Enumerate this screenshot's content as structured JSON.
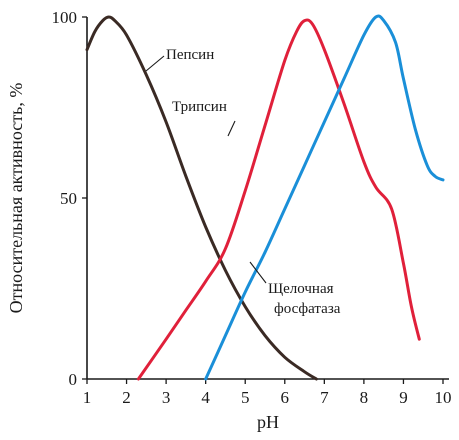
{
  "chart_data": {
    "type": "line",
    "title": "",
    "xlabel": "pH",
    "ylabel": "Относительная активность, %",
    "xlim": [
      1,
      10
    ],
    "ylim": [
      0,
      100
    ],
    "x_ticks": [
      "1",
      "2",
      "3",
      "4",
      "5",
      "6",
      "7",
      "8",
      "9",
      "10"
    ],
    "y_ticks": [
      "0",
      "50",
      "100"
    ],
    "grid": false,
    "series": [
      {
        "name": "Пепсин",
        "color": "#3a2a24",
        "x": [
          1.0,
          1.2,
          1.4,
          1.55,
          1.7,
          2.0,
          2.5,
          3.0,
          3.5,
          4.0,
          4.5,
          5.0,
          5.5,
          6.0,
          6.5,
          6.8
        ],
        "y": [
          91,
          96,
          99,
          100,
          99,
          95,
          84,
          71,
          56,
          42,
          30,
          20,
          12,
          6,
          2,
          0
        ]
      },
      {
        "name": "Трипсин",
        "color": "#e0203a",
        "x": [
          2.3,
          3.0,
          3.5,
          4.0,
          4.5,
          5.0,
          5.5,
          6.0,
          6.3,
          6.5,
          6.7,
          7.0,
          7.5,
          8.0,
          8.3,
          8.7,
          9.0,
          9.2,
          9.4
        ],
        "y": [
          0,
          11,
          19,
          27,
          36,
          52,
          70,
          88,
          96,
          99,
          98,
          91,
          76,
          60,
          53,
          47,
          32,
          20,
          11
        ]
      },
      {
        "name": "Щелочная фосфатаза",
        "color": "#1a8fd8",
        "x": [
          4.0,
          4.5,
          5.0,
          5.5,
          6.0,
          6.5,
          7.0,
          7.5,
          8.0,
          8.3,
          8.5,
          8.8,
          9.0,
          9.3,
          9.6,
          9.8,
          10.0
        ],
        "y": [
          0,
          12,
          24,
          35,
          47,
          59,
          71,
          83,
          95,
          100,
          99,
          93,
          83,
          69,
          59,
          56,
          55
        ]
      }
    ]
  }
}
